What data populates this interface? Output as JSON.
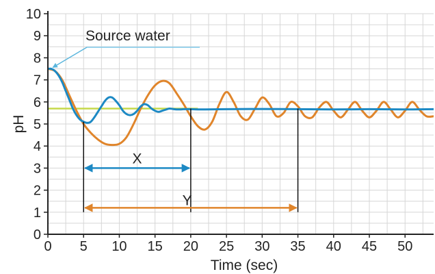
{
  "chart_data": {
    "type": "line",
    "title": "",
    "xlabel": "Time (sec)",
    "ylabel": "pH",
    "xlim": [
      0,
      54
    ],
    "ylim": [
      0,
      10
    ],
    "xticks": [
      0,
      5,
      10,
      15,
      20,
      25,
      30,
      35,
      40,
      45,
      50
    ],
    "yticks": [
      0,
      1,
      2,
      3,
      4,
      5,
      6,
      7,
      8,
      9,
      10
    ],
    "grid": true,
    "reference_line": {
      "y": 5.7,
      "color": "#c5d94a"
    },
    "series": [
      {
        "color": "#e0852b",
        "x": [
          0,
          1,
          2,
          3,
          4,
          5,
          6,
          7,
          8,
          9,
          10,
          11,
          12,
          13,
          14,
          15,
          16,
          17,
          18,
          19,
          20,
          21,
          22,
          23,
          24,
          25,
          26,
          27,
          28,
          29,
          30,
          31,
          32,
          33,
          34,
          35,
          36,
          37,
          38,
          39,
          40,
          41,
          42,
          43,
          44,
          45,
          46,
          47,
          48,
          49,
          50,
          51,
          52,
          53,
          54
        ],
        "y": [
          7.5,
          7.4,
          7.0,
          6.3,
          5.6,
          5.0,
          4.6,
          4.3,
          4.1,
          4.05,
          4.1,
          4.4,
          5.0,
          5.7,
          6.3,
          6.75,
          6.95,
          6.85,
          6.4,
          5.9,
          5.35,
          4.9,
          4.75,
          5.1,
          5.9,
          6.45,
          6.0,
          5.35,
          5.2,
          5.7,
          6.2,
          5.9,
          5.35,
          5.5,
          6.0,
          5.8,
          5.35,
          5.3,
          5.75,
          6.0,
          5.6,
          5.3,
          5.65,
          6.0,
          5.6,
          5.3,
          5.6,
          6.0,
          5.65,
          5.3,
          5.6,
          6.0,
          5.65,
          5.35,
          5.35
        ]
      },
      {
        "color": "#1c89c4",
        "x": [
          0,
          0.5,
          1,
          1.5,
          2,
          2.5,
          3,
          3.5,
          4,
          4.5,
          5,
          5.5,
          6,
          6.5,
          7,
          7.5,
          8,
          8.5,
          9,
          9.5,
          10,
          10.5,
          11,
          11.5,
          12,
          12.5,
          13,
          13.5,
          14,
          14.5,
          15,
          15.5,
          16,
          16.5,
          17,
          17.5,
          18,
          18.5,
          19,
          19.5,
          20,
          21,
          22,
          25,
          30,
          35,
          40,
          45,
          50,
          54
        ],
        "y": [
          7.5,
          7.5,
          7.4,
          7.2,
          6.9,
          6.5,
          6.1,
          5.7,
          5.4,
          5.2,
          5.1,
          5.05,
          5.1,
          5.3,
          5.55,
          5.8,
          6.05,
          6.2,
          6.2,
          6.05,
          5.85,
          5.6,
          5.45,
          5.4,
          5.45,
          5.6,
          5.8,
          5.9,
          5.85,
          5.7,
          5.6,
          5.55,
          5.6,
          5.65,
          5.7,
          5.68,
          5.66,
          5.66,
          5.67,
          5.67,
          5.67,
          5.66,
          5.66,
          5.67,
          5.68,
          5.67,
          5.66,
          5.67,
          5.66,
          5.67
        ]
      }
    ],
    "annotations": {
      "source_water": {
        "label": "Source water",
        "point": [
          0.3,
          7.5
        ]
      },
      "X": {
        "label": "X",
        "x_start": 5,
        "x_end": 20,
        "y": 3.0,
        "color": "#1c89c4"
      },
      "Y": {
        "label": "Y",
        "x_start": 5,
        "x_end": 35,
        "y": 1.2,
        "color": "#e0852b"
      },
      "vlines": [
        {
          "x": 5,
          "top": 5.1
        },
        {
          "x": 20,
          "top": 5.7
        },
        {
          "x": 35,
          "top": 5.7
        }
      ]
    }
  }
}
